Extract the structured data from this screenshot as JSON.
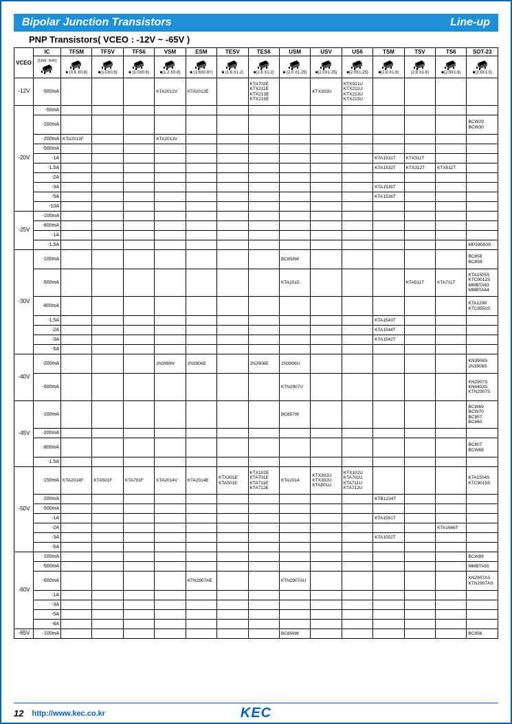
{
  "header": {
    "left": "Bipolar Junction Transistors",
    "right": "Line-up"
  },
  "subtitle": "PNP Transistors( VCEO : -12V ~ -65V )",
  "columns": [
    "VCEO",
    "IC",
    "TFSM",
    "TFSV",
    "TFS6",
    "VSM",
    "ESM",
    "TESV",
    "TES6",
    "USM",
    "USV",
    "US6",
    "TSM",
    "TSV",
    "TS6",
    "SOT-23"
  ],
  "unit_label": "(Unit: mm)",
  "pkg_dims": [
    "",
    "",
    "■ (0.6 X0.8)",
    "■(1.0X0.6)",
    "■ (1.0X0.6)",
    "■(1.2 X0.8)",
    "■ (1.6X0.8†)",
    "■ (1.6 X1.2)",
    "■(1.6 X1.2)",
    "■ (2.0 X1.25)",
    "■(2.0X1.25)",
    "■(2.0X1.25)",
    "■(2.9 X1.6)",
    "(2.9 X1.6)",
    "■(2.9X1.6)",
    "■(2.9X1.3)"
  ],
  "groups": [
    {
      "vceo": "-12V",
      "rows": [
        {
          "ic": "-500mA",
          "cells": [
            "",
            "",
            "",
            "KTA2012V",
            "KTA2012E",
            "",
            "KTA702E\nKTX211E\nKTX213E\nKTX215E",
            "",
            "KTX303U",
            "KTX921U\nKTX211U\nKTX213U\nKTX215U",
            "",
            "",
            "",
            ""
          ],
          "h": "vtall"
        }
      ]
    },
    {
      "vceo": "-20V",
      "rows": [
        {
          "ic": "-50mA",
          "cells": [
            "",
            "",
            "",
            "",
            "",
            "",
            "",
            "",
            "",
            "",
            "",
            "",
            "",
            ""
          ]
        },
        {
          "ic": "-100mA",
          "cells": [
            "",
            "",
            "",
            "",
            "",
            "",
            "",
            "",
            "",
            "",
            "",
            "",
            "",
            "BCW29\nBCW30"
          ],
          "h": "tall"
        },
        {
          "ic": "-200mA",
          "cells": [
            "KTA2013F",
            "",
            "",
            "KTA2013V",
            "",
            "",
            "",
            "",
            "",
            "",
            "",
            "",
            "",
            ""
          ]
        },
        {
          "ic": "-500mA",
          "cells": [
            "",
            "",
            "",
            "",
            "",
            "",
            "",
            "",
            "",
            "",
            "",
            "",
            "",
            ""
          ]
        },
        {
          "ic": "-1A",
          "cells": [
            "",
            "",
            "",
            "",
            "",
            "",
            "",
            "",
            "",
            "",
            "KTA1531T",
            "KTX311T",
            "",
            ""
          ]
        },
        {
          "ic": "-1.5A",
          "cells": [
            "",
            "",
            "",
            "",
            "",
            "",
            "",
            "",
            "",
            "",
            "KTA1532T",
            "KTX312T",
            "KTX511T",
            ""
          ]
        },
        {
          "ic": "-2A",
          "cells": [
            "",
            "",
            "",
            "",
            "",
            "",
            "",
            "",
            "",
            "",
            "",
            "",
            "",
            ""
          ]
        },
        {
          "ic": "-3A",
          "cells": [
            "",
            "",
            "",
            "",
            "",
            "",
            "",
            "",
            "",
            "",
            "KTA1535T",
            "",
            "",
            ""
          ]
        },
        {
          "ic": "-5A",
          "cells": [
            "",
            "",
            "",
            "",
            "",
            "",
            "",
            "",
            "",
            "",
            "KTA1536T",
            "",
            "",
            ""
          ]
        },
        {
          "ic": "-10A",
          "cells": [
            "",
            "",
            "",
            "",
            "",
            "",
            "",
            "",
            "",
            "",
            "",
            "",
            "",
            ""
          ]
        }
      ]
    },
    {
      "vceo": "-25V",
      "rows": [
        {
          "ic": "-100mA",
          "cells": [
            "",
            "",
            "",
            "",
            "",
            "",
            "",
            "",
            "",
            "",
            "",
            "",
            "",
            ""
          ]
        },
        {
          "ic": "-800mA",
          "cells": [
            "",
            "",
            "",
            "",
            "",
            "",
            "",
            "",
            "",
            "",
            "",
            "",
            "",
            ""
          ]
        },
        {
          "ic": "-1A",
          "cells": [
            "",
            "",
            "",
            "",
            "",
            "",
            "",
            "",
            "",
            "",
            "",
            "",
            "",
            ""
          ]
        },
        {
          "ic": "-1.5A",
          "cells": [
            "",
            "",
            "",
            "",
            "",
            "",
            "",
            "",
            "",
            "",
            "",
            "",
            "",
            "MPS8550S"
          ]
        }
      ]
    },
    {
      "vceo": "-30V",
      "rows": [
        {
          "ic": "-100mA",
          "cells": [
            "",
            "",
            "",
            "",
            "",
            "",
            "",
            "BC858W",
            "",
            "",
            "",
            "",
            "",
            "BC858\nBC859"
          ],
          "h": "tall"
        },
        {
          "ic": "-500mA",
          "cells": [
            "",
            "",
            "",
            "",
            "",
            "",
            "",
            "KTA2015",
            "",
            "",
            "",
            "KTA511T",
            "KTA711T",
            "KTA1505S\nKTC9012S\nMMBTA63\nMMBTA64"
          ],
          "h": "vtall"
        },
        {
          "ic": "-800mA",
          "cells": [
            "",
            "",
            "",
            "",
            "",
            "",
            "",
            "",
            "",
            "",
            "",
            "",
            "",
            "KTA1298\nKTC8550S"
          ],
          "h": "tall"
        },
        {
          "ic": "-1.5A",
          "cells": [
            "",
            "",
            "",
            "",
            "",
            "",
            "",
            "",
            "",
            "",
            "KTA1543T",
            "",
            "",
            ""
          ]
        },
        {
          "ic": "-2A",
          "cells": [
            "",
            "",
            "",
            "",
            "",
            "",
            "",
            "",
            "",
            "",
            "KTA1544T",
            "",
            "",
            ""
          ]
        },
        {
          "ic": "-3A",
          "cells": [
            "",
            "",
            "",
            "",
            "",
            "",
            "",
            "",
            "",
            "",
            "KTA1542T",
            "",
            "",
            ""
          ]
        },
        {
          "ic": "-5A",
          "cells": [
            "",
            "",
            "",
            "",
            "",
            "",
            "",
            "",
            "",
            "",
            "",
            "",
            "",
            ""
          ]
        }
      ]
    },
    {
      "vceo": "-40V",
      "rows": [
        {
          "ic": "-200mA",
          "cells": [
            "",
            "",
            "",
            "2N3906V",
            "2N3906E",
            "",
            "2N2906E",
            "2N3906U",
            "",
            "",
            "",
            "",
            "",
            "KN3906S\n2N3906S"
          ],
          "h": "tall"
        },
        {
          "ic": "-600mA",
          "cells": [
            "",
            "",
            "",
            "",
            "",
            "",
            "",
            "KTN2907U",
            "",
            "",
            "",
            "",
            "",
            "KN2907S\nKN4403S\nKTN2907S"
          ],
          "h": "vtall"
        }
      ]
    },
    {
      "vceo": "-45V",
      "rows": [
        {
          "ic": "-100mA",
          "cells": [
            "",
            "",
            "",
            "",
            "",
            "",
            "",
            "BC857W",
            "",
            "",
            "",
            "",
            "",
            "BCW69\nBCW70\nBC857\nBC860"
          ],
          "h": "vtall"
        },
        {
          "ic": "-200mA",
          "cells": [
            "",
            "",
            "",
            "",
            "",
            "",
            "",
            "",
            "",
            "",
            "",
            "",
            "",
            ""
          ]
        },
        {
          "ic": "-800mA",
          "cells": [
            "",
            "",
            "",
            "",
            "",
            "",
            "",
            "",
            "",
            "",
            "",
            "",
            "",
            "BC807\nBCW68"
          ],
          "h": "tall"
        },
        {
          "ic": "-1.5A",
          "cells": [
            "",
            "",
            "",
            "",
            "",
            "",
            "",
            "",
            "",
            "",
            "",
            "",
            "",
            ""
          ]
        }
      ]
    },
    {
      "vceo": "-50V",
      "rows": [
        {
          "ic": "-150mA",
          "cells": [
            "KTA2014F",
            "KTA501F",
            "KTA701F",
            "KTA2014V",
            "KTA2014E",
            "KTX301E\nKTA501E",
            "KTX102E\nKTA701E\nKTA711E\nKTA712E",
            "KTA2014",
            "KTX301U\nKTX302U\nKTA501U",
            "KTX102U\nKTA701U\nKTA711U\nKTA712U",
            "",
            "",
            "",
            "KTA1504S\nKTC9015S"
          ],
          "h": "vtall"
        },
        {
          "ic": "-200mA",
          "cells": [
            "",
            "",
            "",
            "",
            "",
            "",
            "",
            "",
            "",
            "",
            "KTB1234T",
            "",
            "",
            ""
          ]
        },
        {
          "ic": "-500mA",
          "cells": [
            "",
            "",
            "",
            "",
            "",
            "",
            "",
            "",
            "",
            "",
            "",
            "",
            "",
            ""
          ]
        },
        {
          "ic": "-1A",
          "cells": [
            "",
            "",
            "",
            "",
            "",
            "",
            "",
            "",
            "",
            "",
            "KTA1551T",
            "",
            "",
            ""
          ]
        },
        {
          "ic": "-2A",
          "cells": [
            "",
            "",
            "",
            "",
            "",
            "",
            "",
            "",
            "",
            "",
            "",
            "",
            "KTA1666T",
            ""
          ]
        },
        {
          "ic": "-3A",
          "cells": [
            "",
            "",
            "",
            "",
            "",
            "",
            "",
            "",
            "",
            "",
            "KTA1552T",
            "",
            "",
            ""
          ]
        },
        {
          "ic": "-5A",
          "cells": [
            "",
            "",
            "",
            "",
            "",
            "",
            "",
            "",
            "",
            "",
            "",
            "",
            "",
            ""
          ]
        }
      ]
    },
    {
      "vceo": "-60V",
      "rows": [
        {
          "ic": "-100mA",
          "cells": [
            "",
            "",
            "",
            "",
            "",
            "",
            "",
            "",
            "",
            "",
            "",
            "",
            "",
            "BCW89"
          ]
        },
        {
          "ic": "-500mA",
          "cells": [
            "",
            "",
            "",
            "",
            "",
            "",
            "",
            "",
            "",
            "",
            "",
            "",
            "",
            "MMBTA55"
          ]
        },
        {
          "ic": "-600mA",
          "cells": [
            "",
            "",
            "",
            "",
            "KTN2907AE",
            "",
            "",
            "KTN2907AU",
            "",
            "",
            "",
            "",
            "",
            "KN2907AS\nKTN2907AS"
          ],
          "h": "tall"
        },
        {
          "ic": "-1A",
          "cells": [
            "",
            "",
            "",
            "",
            "",
            "",
            "",
            "",
            "",
            "",
            "",
            "",
            "",
            ""
          ]
        },
        {
          "ic": "-3A",
          "cells": [
            "",
            "",
            "",
            "",
            "",
            "",
            "",
            "",
            "",
            "",
            "",
            "",
            "",
            ""
          ]
        },
        {
          "ic": "-5A",
          "cells": [
            "",
            "",
            "",
            "",
            "",
            "",
            "",
            "",
            "",
            "",
            "",
            "",
            "",
            ""
          ]
        },
        {
          "ic": "-8A",
          "cells": [
            "",
            "",
            "",
            "",
            "",
            "",
            "",
            "",
            "",
            "",
            "",
            "",
            "",
            ""
          ]
        }
      ]
    },
    {
      "vceo": "-65V",
      "rows": [
        {
          "ic": "-100mA",
          "cells": [
            "",
            "",
            "",
            "",
            "",
            "",
            "",
            "BC856W",
            "",
            "",
            "",
            "",
            "",
            "BC856"
          ]
        }
      ]
    }
  ],
  "footer": {
    "page": "12",
    "url": "http://www.kec.co.kr",
    "logo": "KEC"
  }
}
